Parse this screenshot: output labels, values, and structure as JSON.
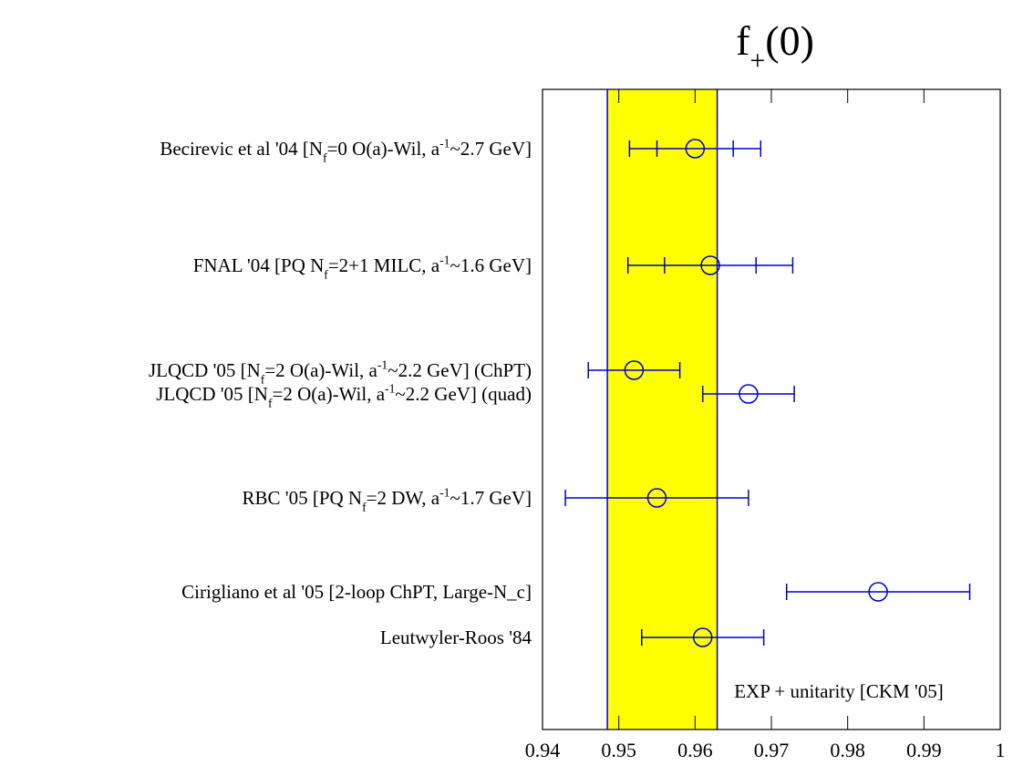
{
  "chart_data": {
    "type": "forest",
    "title": [
      {
        "text": "f"
      },
      {
        "text": "+",
        "pos": "sub"
      },
      {
        "text": "(0)"
      }
    ],
    "xlim": [
      0.94,
      1
    ],
    "xticks": [
      0.94,
      0.95,
      0.96,
      0.97,
      0.98,
      0.99,
      1
    ],
    "color": "#0000cc",
    "band": {
      "value": 0.9557,
      "error": 0.0072,
      "color": "#ffff00",
      "label": "EXP + unitarity [CKM '05]"
    },
    "points": [
      {
        "label": [
          {
            "text": "Becirevic et al  '04 [N"
          },
          {
            "text": "f",
            "pos": "sub"
          },
          {
            "text": "=0 O(a)-Wil, a"
          },
          {
            "text": "-1",
            "pos": "sup"
          },
          {
            "text": "~2.7 GeV]"
          }
        ],
        "value": 0.96,
        "stat_error": 0.005,
        "total_error": 0.0086
      },
      {
        "label": [
          {
            "text": "FNAL '04 [PQ N"
          },
          {
            "text": "f",
            "pos": "sub"
          },
          {
            "text": "=2+1 MILC, a"
          },
          {
            "text": "-1",
            "pos": "sup"
          },
          {
            "text": "~1.6 GeV]"
          }
        ],
        "value": 0.962,
        "stat_error": 0.006,
        "total_error": 0.0108
      },
      {
        "label": [
          {
            "text": "JLQCD '05 [N"
          },
          {
            "text": "f",
            "pos": "sub"
          },
          {
            "text": "=2 O(a)-Wil, a"
          },
          {
            "text": "-1",
            "pos": "sup"
          },
          {
            "text": "~2.2 GeV] (ChPT)"
          }
        ],
        "value": 0.952,
        "total_error": 0.006
      },
      {
        "label": [
          {
            "text": "JLQCD '05 [N"
          },
          {
            "text": "f",
            "pos": "sub"
          },
          {
            "text": "=2 O(a)-Wil, a"
          },
          {
            "text": "-1",
            "pos": "sup"
          },
          {
            "text": "~2.2 GeV] (quad)"
          }
        ],
        "value": 0.967,
        "total_error": 0.006
      },
      {
        "label": [
          {
            "text": "RBC '05 [PQ N"
          },
          {
            "text": "f",
            "pos": "sub"
          },
          {
            "text": "=2 DW, a"
          },
          {
            "text": "-1",
            "pos": "sup"
          },
          {
            "text": "~1.7 GeV]"
          }
        ],
        "value": 0.955,
        "total_error": 0.012
      },
      {
        "label": [
          {
            "text": "Cirigliano et al '05 [2-loop ChPT, Large-N_c]"
          }
        ],
        "value": 0.984,
        "total_error": 0.012
      },
      {
        "label": [
          {
            "text": "Leutwyler-Roos '84"
          }
        ],
        "value": 0.961,
        "total_error": 0.008
      }
    ]
  }
}
